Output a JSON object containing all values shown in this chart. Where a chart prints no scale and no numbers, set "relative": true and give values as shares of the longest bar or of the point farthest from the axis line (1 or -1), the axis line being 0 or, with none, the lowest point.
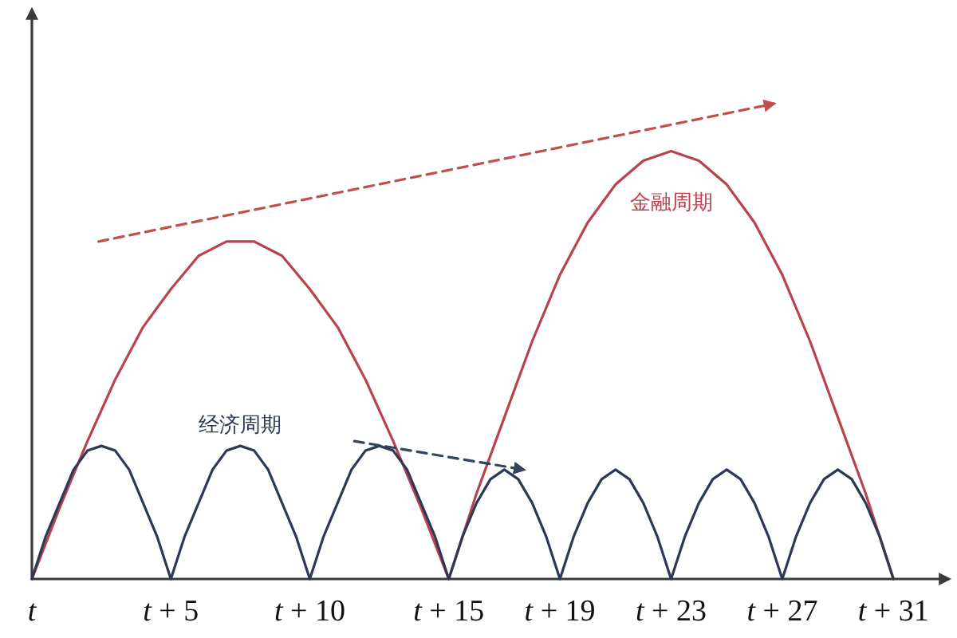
{
  "chart_data": {
    "type": "line",
    "relative": true,
    "xlim": [
      0,
      33
    ],
    "xticks": [
      {
        "value": 0,
        "label": "t"
      },
      {
        "value": 5,
        "label": "t + 5"
      },
      {
        "value": 10,
        "label": "t + 10"
      },
      {
        "value": 15,
        "label": "t + 15"
      },
      {
        "value": 19,
        "label": "t + 19"
      },
      {
        "value": 23,
        "label": "t + 23"
      },
      {
        "value": 27,
        "label": "t + 27"
      },
      {
        "value": 31,
        "label": "t + 31"
      }
    ],
    "series": [
      {
        "name": "金融周期",
        "color": "#b8434e",
        "x": [
          0,
          1,
          2,
          3,
          4,
          5,
          6,
          7,
          8,
          9,
          10,
          11,
          12,
          13,
          14,
          15,
          16,
          17,
          18,
          19,
          20,
          21,
          22,
          23,
          24,
          25,
          26,
          27,
          28,
          29,
          30,
          31
        ],
        "values": [
          0,
          0.15,
          0.29,
          0.42,
          0.53,
          0.61,
          0.68,
          0.71,
          0.71,
          0.68,
          0.61,
          0.53,
          0.42,
          0.29,
          0.15,
          0,
          0.18,
          0.34,
          0.5,
          0.64,
          0.75,
          0.83,
          0.88,
          0.9,
          0.88,
          0.83,
          0.75,
          0.64,
          0.5,
          0.34,
          0.18,
          0
        ]
      },
      {
        "name": "经济周期",
        "color": "#2b3954",
        "x": [
          0,
          0.5,
          1,
          1.5,
          2,
          2.5,
          3,
          3.5,
          4,
          4.5,
          5,
          5.5,
          6,
          6.5,
          7,
          7.5,
          8,
          8.5,
          9,
          9.5,
          10,
          10.5,
          11,
          11.5,
          12,
          12.5,
          13,
          13.5,
          14,
          14.5,
          15,
          15.5,
          16,
          16.5,
          17,
          17.5,
          18,
          18.5,
          19,
          19.5,
          20,
          20.5,
          21,
          21.5,
          22,
          22.5,
          23,
          23.5,
          24,
          24.5,
          25,
          25.5,
          26,
          26.5,
          27,
          27.5,
          28,
          28.5,
          29,
          29.5,
          30,
          30.5,
          31
        ],
        "values": [
          0,
          0.09,
          0.16,
          0.23,
          0.27,
          0.28,
          0.27,
          0.23,
          0.16,
          0.09,
          0,
          0.09,
          0.16,
          0.23,
          0.27,
          0.28,
          0.27,
          0.23,
          0.16,
          0.09,
          0,
          0.09,
          0.16,
          0.23,
          0.27,
          0.28,
          0.27,
          0.23,
          0.16,
          0.09,
          0,
          0.09,
          0.16,
          0.21,
          0.23,
          0.21,
          0.16,
          0.09,
          0,
          0.09,
          0.16,
          0.21,
          0.23,
          0.21,
          0.16,
          0.09,
          0,
          0.09,
          0.16,
          0.21,
          0.23,
          0.21,
          0.16,
          0.09,
          0,
          0.09,
          0.16,
          0.21,
          0.23,
          0.21,
          0.16,
          0.09,
          0
        ]
      },
      {
        "color": "#c0504d",
        "line_style": "dashed",
        "x": [
          2.4,
          26.7
        ],
        "values": [
          0.71,
          1
        ]
      },
      {
        "color": "#34435e",
        "line_style": "dashed",
        "x": [
          11.6,
          17.7
        ],
        "values": [
          0.29,
          0.23
        ]
      }
    ]
  }
}
